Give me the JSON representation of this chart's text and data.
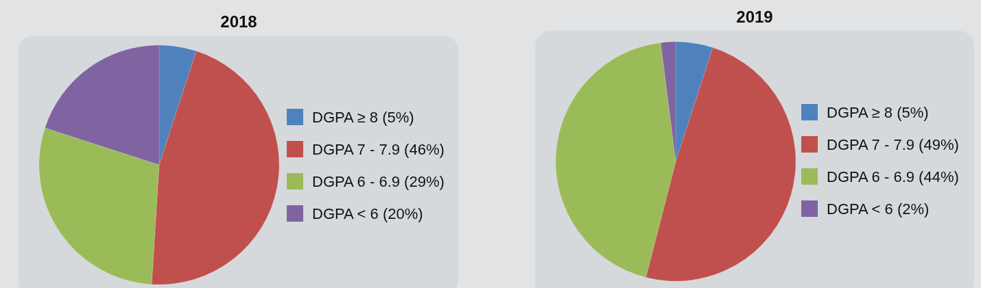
{
  "chart_data": [
    {
      "type": "pie",
      "title": "2018",
      "categories": [
        "DGPA ≥ 8 (5%)",
        "DGPA 7 - 7.9 (46%)",
        "DGPA 6 - 6.9 (29%)",
        "DGPA < 6 (20%)"
      ],
      "values": [
        5,
        46,
        29,
        20
      ],
      "colors": [
        "#4f81bd",
        "#c0504d",
        "#9bbb59",
        "#8064a2"
      ],
      "legend": "right"
    },
    {
      "type": "pie",
      "title": "2019",
      "categories": [
        "DGPA ≥ 8 (5%)",
        "DGPA 7 - 7.9 (49%)",
        "DGPA 6 - 6.9 (44%)",
        "DGPA < 6 (2%)"
      ],
      "values": [
        5,
        49,
        44,
        2
      ],
      "colors": [
        "#4f81bd",
        "#c0504d",
        "#9bbb59",
        "#8064a2"
      ],
      "legend": "right"
    }
  ]
}
